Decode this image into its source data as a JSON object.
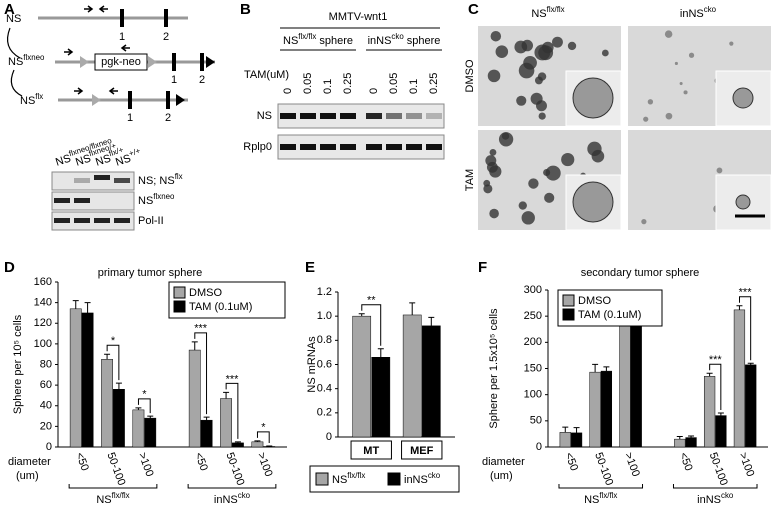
{
  "figure": {
    "A": {
      "letter": "A",
      "alleles": [
        "NS",
        {
          "base": "NS",
          "sup": "flxneo"
        },
        {
          "base": "NS",
          "sup": "flx"
        }
      ],
      "box": "pgk-neo",
      "exons": [
        "1",
        "2"
      ],
      "lanes": [
        {
          "base": "NS",
          "sup": "flxneo/flxneo"
        },
        {
          "base": "NS",
          "sup": "flxneo/+"
        },
        {
          "base": "NS",
          "sup": "flx/+"
        },
        {
          "base": "NS",
          "sup": "+/+"
        }
      ],
      "rows": [
        {
          "base": "NS; NS",
          "sup": "flx"
        },
        {
          "base": "NS",
          "sup": "flxneo"
        },
        "Pol-II"
      ]
    },
    "B": {
      "letter": "B",
      "title": "MMTV-wnt1",
      "groups": [
        {
          "base": "NS",
          "sup": "flx/flx",
          "tail": " sphere"
        },
        {
          "base": "inNS",
          "sup": "cko",
          "tail": " sphere"
        }
      ],
      "dose_label": "TAM(uM)",
      "doses": [
        "0",
        "0.05",
        "0.1",
        "0.25"
      ],
      "rows": [
        "NS",
        "Rplp0"
      ]
    },
    "C": {
      "letter": "C",
      "columns": [
        {
          "base": "NS",
          "sup": "flx/flx"
        },
        {
          "base": "inNS",
          "sup": "cko"
        }
      ],
      "rows": [
        "DMSO",
        "TAM"
      ]
    }
  },
  "chart_data": [
    {
      "type": "bar",
      "panel": "D",
      "title": "primary tumor sphere",
      "ylabel": "Sphere per 10⁵ cells",
      "xlabel": [
        "diameter",
        "(um)"
      ],
      "categories": [
        "<50",
        "50-100",
        ">100",
        "<50",
        "50-100",
        ">100"
      ],
      "groups": [
        {
          "base": "NS",
          "sup": "flx/flx"
        },
        {
          "base": "inNS",
          "sup": "cko"
        }
      ],
      "series": [
        {
          "name": "DMSO",
          "color": "#a6a6a6",
          "values": [
            134,
            85,
            36,
            94,
            47,
            5
          ],
          "errors": [
            8,
            5,
            2,
            8,
            6,
            1
          ]
        },
        {
          "name": "TAM (0.1uM)",
          "color": "#000000",
          "values": [
            130,
            56,
            28,
            26,
            4,
            0.5
          ],
          "errors": [
            10,
            6,
            2,
            3,
            1,
            0.5
          ]
        }
      ],
      "significance": [
        null,
        "*",
        "*",
        "***",
        "***",
        "*"
      ],
      "ylim": [
        0,
        160
      ],
      "yticks": [
        0,
        20,
        40,
        60,
        80,
        100,
        120,
        140,
        160
      ],
      "legend": "upper right"
    },
    {
      "type": "bar",
      "panel": "E",
      "ylabel": "NS mRNAs",
      "categories": [
        "MT",
        "MEF"
      ],
      "series": [
        {
          "name": {
            "base": "NS",
            "sup": "flx/flx"
          },
          "color": "#a6a6a6",
          "values": [
            1.0,
            1.01
          ],
          "errors": [
            0.02,
            0.1
          ]
        },
        {
          "name": {
            "base": "inNS",
            "sup": "cko"
          },
          "color": "#000000",
          "values": [
            0.66,
            0.92
          ],
          "errors": [
            0.07,
            0.07
          ]
        }
      ],
      "significance": [
        "**",
        null
      ],
      "ylim": [
        0,
        1.2
      ],
      "yticks": [
        0,
        0.2,
        0.4,
        0.6,
        0.8,
        {
          "value": 1,
          "label": "1.0"
        },
        1.2
      ],
      "legend": "bottom"
    },
    {
      "type": "bar",
      "panel": "F",
      "title": "secondary tumor sphere",
      "ylabel": "Sphere per 1.5x10⁵ cells",
      "xlabel": [
        "diameter",
        "(um)"
      ],
      "categories": [
        "<50",
        "50-100",
        ">100",
        "<50",
        "50-100",
        ">100"
      ],
      "groups": [
        {
          "base": "NS",
          "sup": "flx/flx"
        },
        {
          "base": "inNS",
          "sup": "cko"
        }
      ],
      "series": [
        {
          "name": "DMSO",
          "color": "#a6a6a6",
          "values": [
            28,
            143,
            281,
            15,
            135,
            262
          ],
          "errors": [
            10,
            15,
            5,
            5,
            6,
            8
          ]
        },
        {
          "name": "TAM (0.1uM)",
          "color": "#000000",
          "values": [
            27,
            145,
            263,
            18,
            60,
            157
          ],
          "errors": [
            10,
            8,
            20,
            3,
            5,
            3
          ]
        }
      ],
      "significance": [
        null,
        null,
        null,
        null,
        "***",
        "***"
      ],
      "ylim": [
        0,
        300
      ],
      "yticks": [
        0,
        50,
        100,
        150,
        200,
        250,
        300
      ],
      "legend": "upper left"
    }
  ]
}
